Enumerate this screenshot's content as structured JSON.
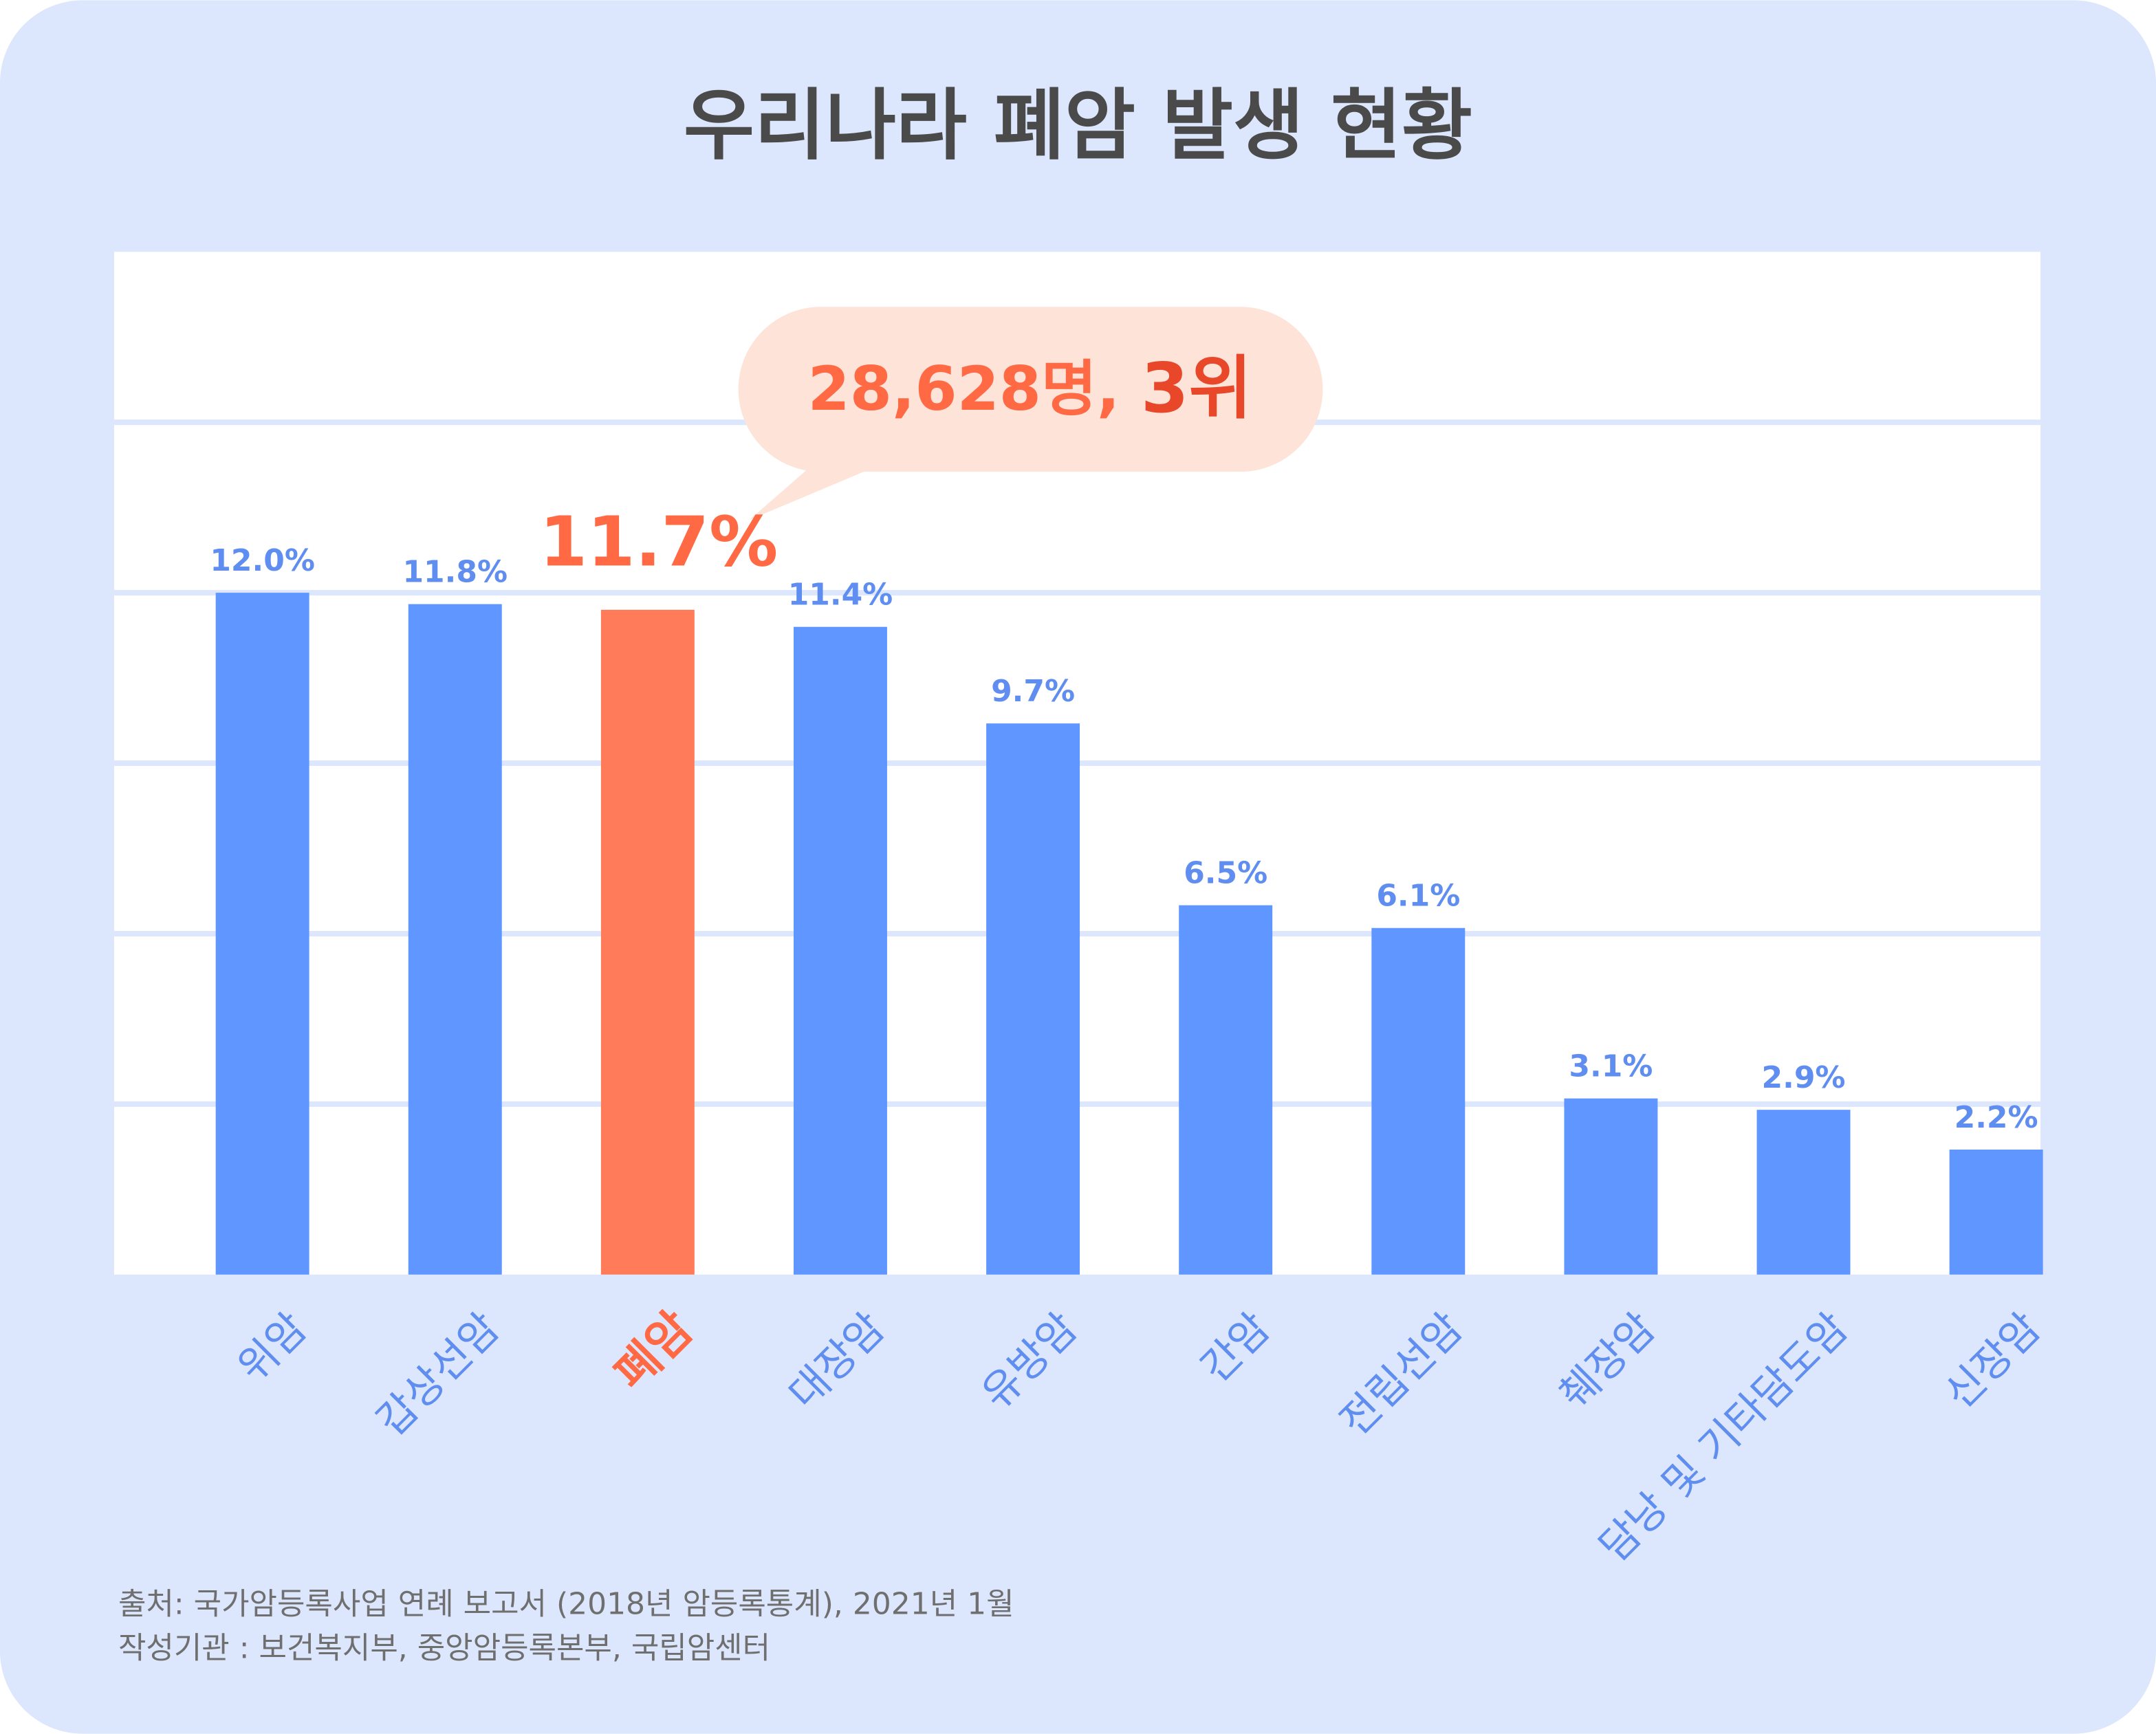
{
  "chart_data": {
    "type": "bar",
    "title": "우리나라 폐암 발생 현황",
    "categories": [
      "위암",
      "갑상선암",
      "폐암",
      "대장암",
      "유방암",
      "간암",
      "전립선암",
      "췌장암",
      "담낭 및 기타담도암",
      "신장암"
    ],
    "values": [
      12.0,
      11.8,
      11.7,
      11.4,
      9.7,
      6.5,
      6.1,
      3.1,
      2.9,
      2.2
    ],
    "value_labels": [
      "12.0%",
      "11.8%",
      "11.7%",
      "11.4%",
      "9.7%",
      "6.5%",
      "6.1%",
      "3.1%",
      "2.9%",
      "2.2%"
    ],
    "colors": [
      "#5f96ff",
      "#5f96ff",
      "#ff7b5a",
      "#5f96ff",
      "#5f96ff",
      "#5f96ff",
      "#5f96ff",
      "#5f96ff",
      "#5f96ff",
      "#5f96ff"
    ],
    "ylim": [
      0,
      18
    ],
    "yticks": [
      3,
      6,
      9,
      12,
      15
    ],
    "grid": true,
    "annotation": [
      "28,628명,",
      "3위"
    ],
    "source": [
      "출처: 국가암등록사업 연례 보고서 (2018년 암등록통계), 2021년 1월",
      "작성기관 : 보건복지부, 중앙암등록본부, 국립암센터"
    ]
  }
}
